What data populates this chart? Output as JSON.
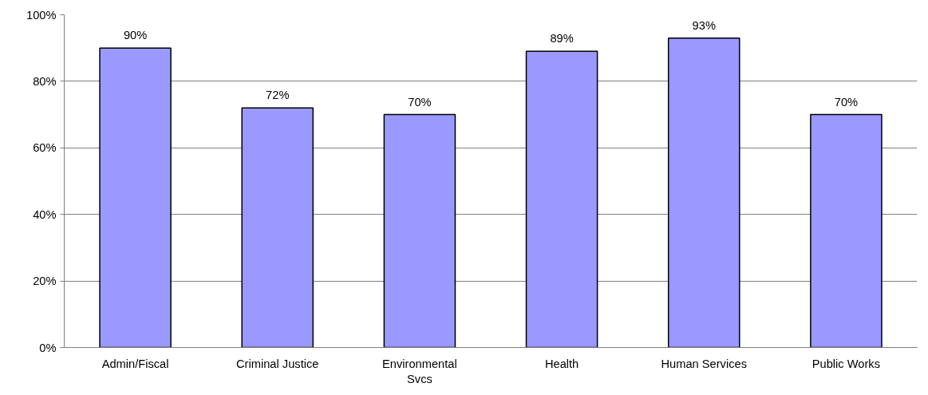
{
  "chart_data": {
    "type": "bar",
    "categories": [
      "Admin/Fiscal",
      "Criminal Justice",
      "Environmental\nSvcs",
      "Health",
      "Human Services",
      "Public Works"
    ],
    "values": [
      90,
      72,
      70,
      89,
      93,
      70
    ],
    "value_labels": [
      "90%",
      "72%",
      "70%",
      "89%",
      "93%",
      "70%"
    ],
    "color": "#9999ff",
    "ylim": [
      0,
      100
    ],
    "yticks": [
      {
        "value": 0,
        "label": "0%"
      },
      {
        "value": 20,
        "label": "20%"
      },
      {
        "value": 40,
        "label": "40%"
      },
      {
        "value": 60,
        "label": "60%"
      },
      {
        "value": 80,
        "label": "80%"
      },
      {
        "value": 100,
        "label": "100%"
      }
    ],
    "grid": "y"
  }
}
